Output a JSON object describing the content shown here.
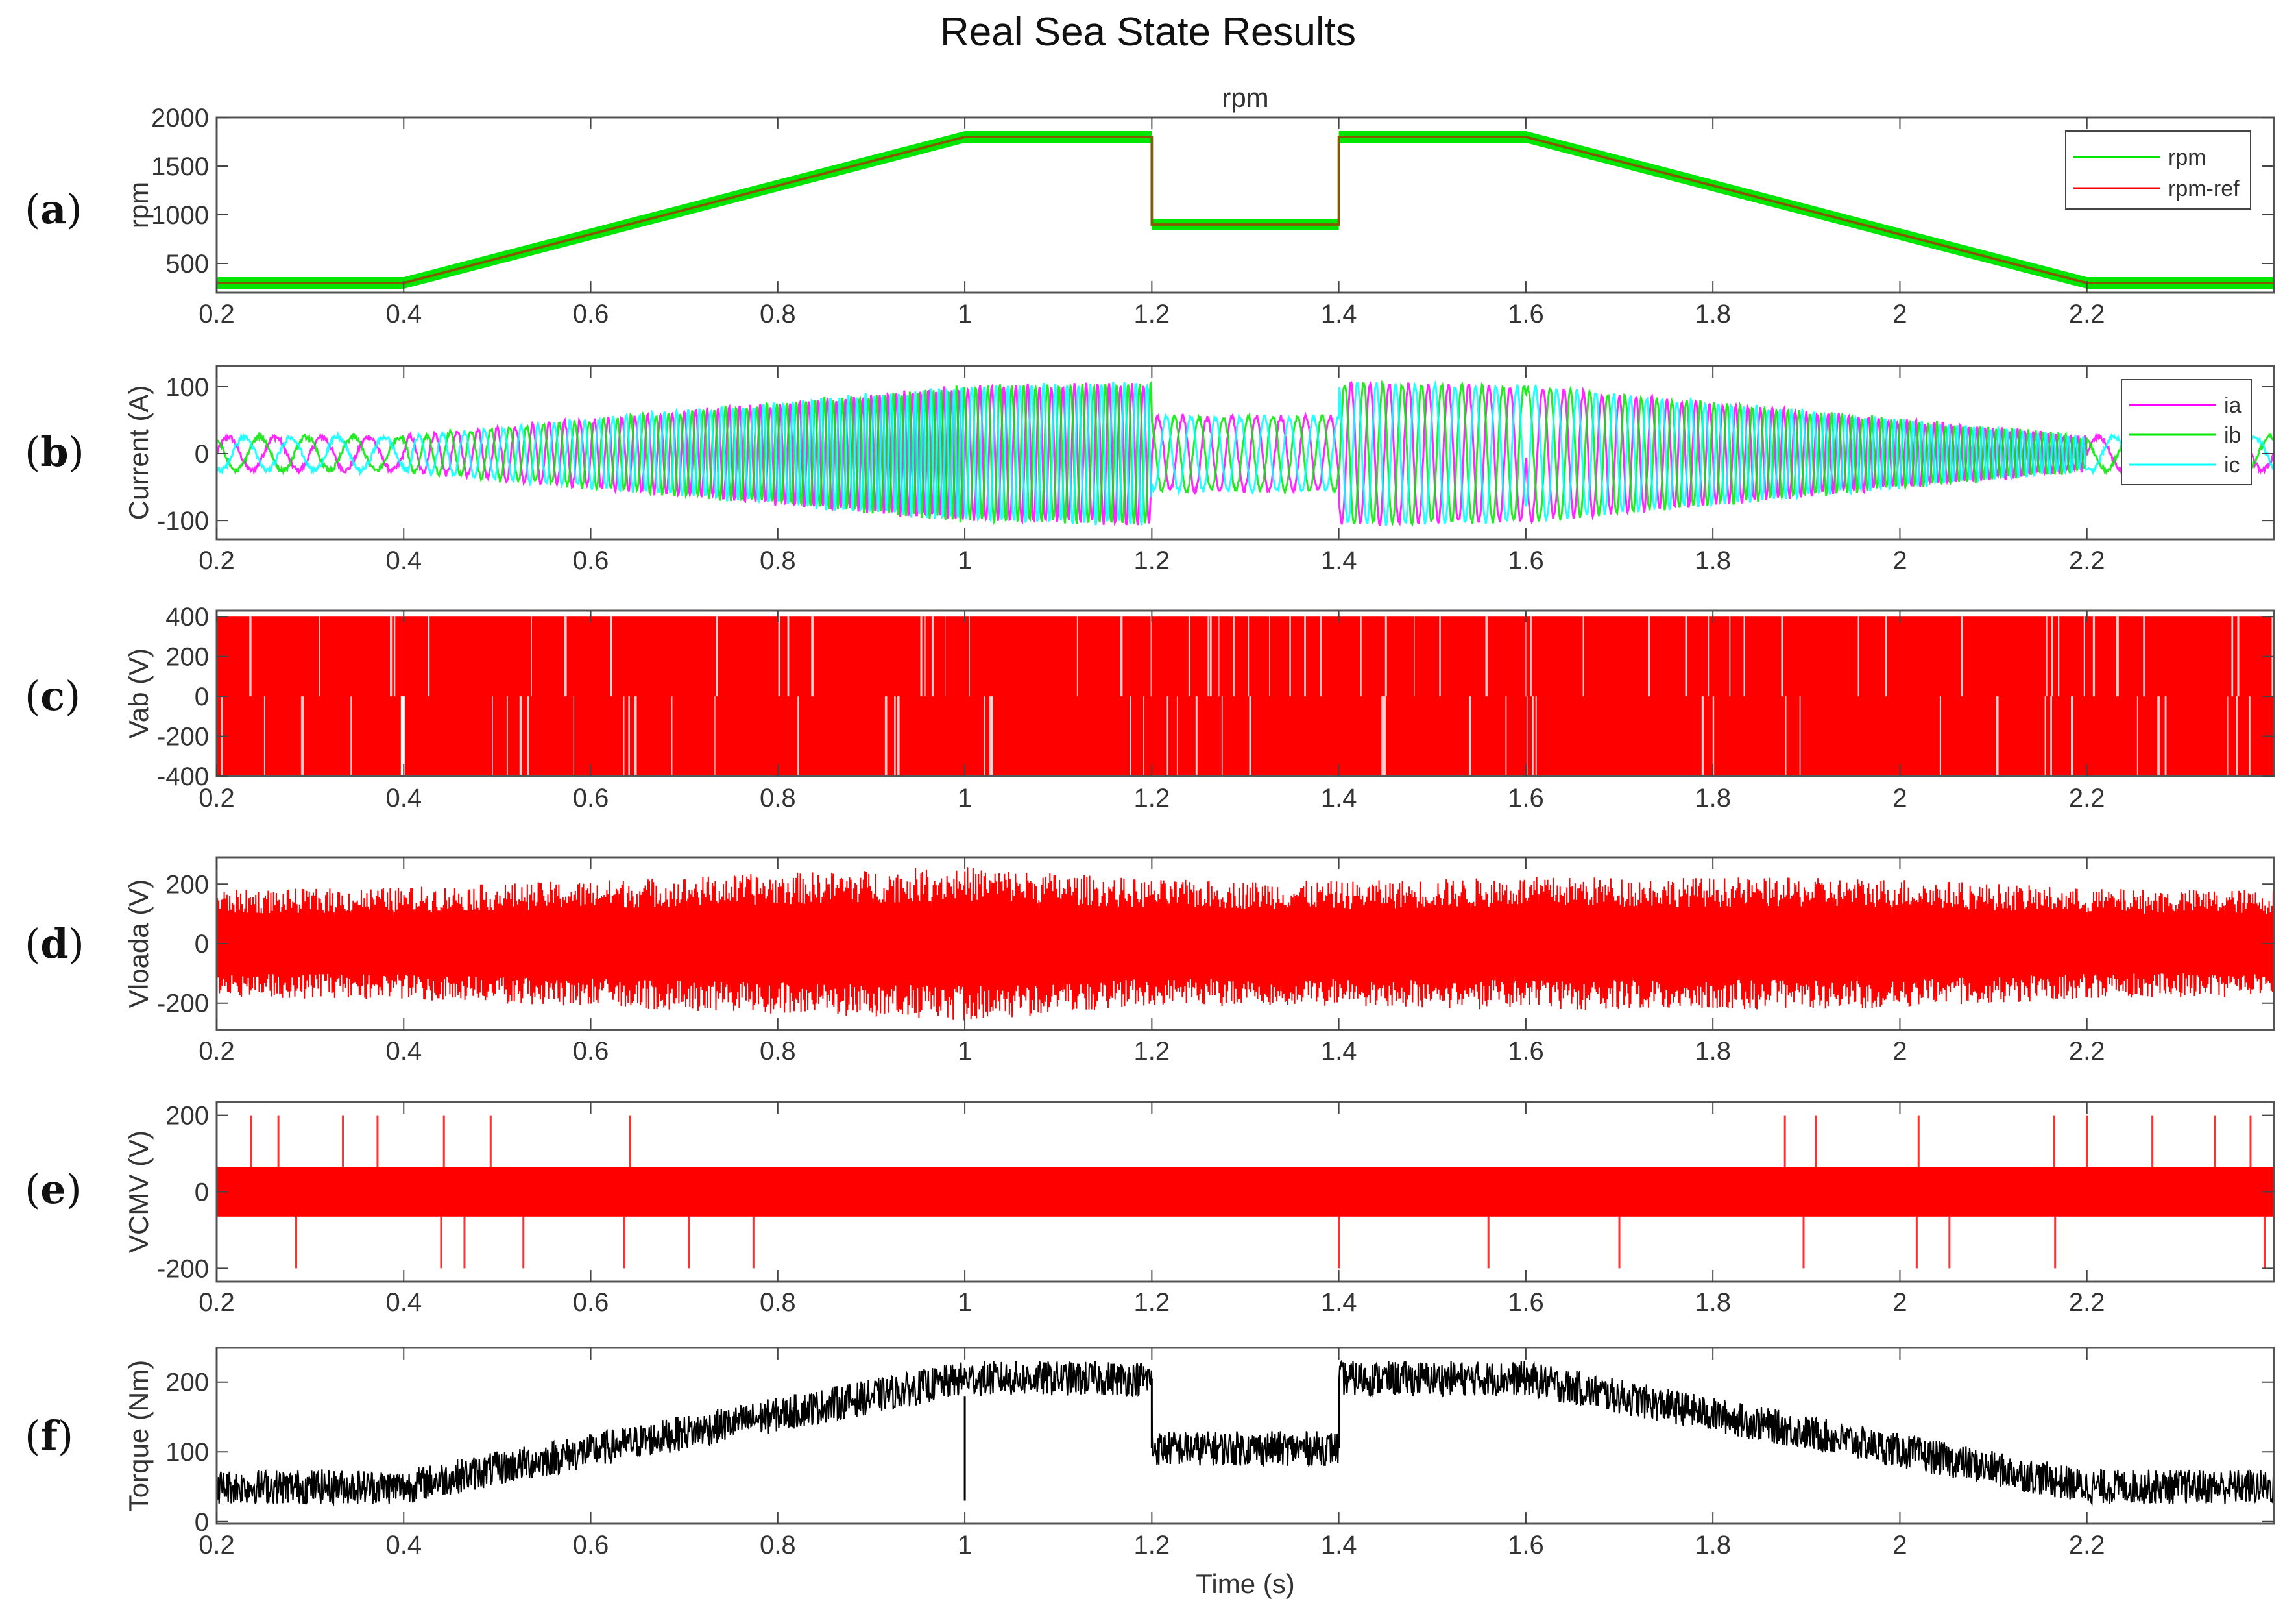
{
  "figure": {
    "title": "Real Sea State Results",
    "xlabel": "Time (s)",
    "x_ticks": [
      "0.2",
      "0.4",
      "0.6",
      "0.8",
      "1",
      "1.2",
      "1.4",
      "1.6",
      "1.8",
      "2",
      "2.2"
    ]
  },
  "panels": [
    {
      "id": "a",
      "label": "a",
      "ylabel": "rpm",
      "subtitle": "rpm",
      "y_ticks": [
        "500",
        "1000",
        "1500",
        "2000"
      ]
    },
    {
      "id": "b",
      "label": "b",
      "ylabel": "Current (A)",
      "y_ticks": [
        "-100",
        "0",
        "100"
      ]
    },
    {
      "id": "c",
      "label": "c",
      "ylabel": "Vab (V)",
      "y_ticks": [
        "-400",
        "-200",
        "0",
        "200",
        "400"
      ]
    },
    {
      "id": "d",
      "label": "d",
      "ylabel": "Vloada (V)",
      "y_ticks": [
        "-200",
        "0",
        "200"
      ]
    },
    {
      "id": "e",
      "label": "e",
      "ylabel": "VCMV (V)",
      "y_ticks": [
        "-200",
        "0",
        "200"
      ]
    },
    {
      "id": "f",
      "label": "f",
      "ylabel": "Torque (Nm)",
      "y_ticks": [
        "0",
        "100",
        "200"
      ]
    }
  ],
  "chart_data": [
    {
      "id": "a",
      "type": "line",
      "title": "rpm",
      "xlabel": "",
      "ylabel": "rpm",
      "xlim": [
        0.2,
        2.4
      ],
      "ylim": [
        200,
        2000
      ],
      "series": [
        {
          "name": "rpm",
          "color": "#00e600",
          "band": 60,
          "x": [
            0.2,
            0.4,
            1.0,
            1.2,
            1.2,
            1.4,
            1.4,
            1.6,
            2.2,
            2.4
          ],
          "y": [
            300,
            300,
            1800,
            1800,
            900,
            900,
            1800,
            1800,
            300,
            300
          ]
        },
        {
          "name": "rpm-ref",
          "color": "#ff0000",
          "x": [
            0.2,
            0.4,
            1.0,
            1.2,
            1.2,
            1.4,
            1.4,
            1.6,
            2.2,
            2.4
          ],
          "y": [
            300,
            300,
            1800,
            1800,
            900,
            900,
            1800,
            1800,
            300,
            300
          ]
        }
      ],
      "legend": [
        "rpm",
        "rpm-ref"
      ],
      "legend_position": "upper right",
      "grid": false
    },
    {
      "id": "b",
      "type": "line",
      "title": "",
      "xlabel": "",
      "ylabel": "Current (A)",
      "xlim": [
        0.2,
        2.4
      ],
      "ylim": [
        -128,
        131
      ],
      "series": [
        {
          "name": "ia",
          "color": "#ff00ff"
        },
        {
          "name": "ib",
          "color": "#00e600"
        },
        {
          "name": "ic",
          "color": "#00ffff"
        }
      ],
      "amplitude_envelope": {
        "x": [
          0.2,
          0.4,
          1.0,
          1.2,
          1.2,
          1.4,
          1.4,
          1.6,
          2.2,
          2.4
        ],
        "y": [
          25,
          25,
          100,
          105,
          55,
          55,
          105,
          100,
          25,
          25
        ]
      },
      "legend": [
        "ia",
        "ib",
        "ic"
      ],
      "legend_position": "upper right",
      "grid": false
    },
    {
      "id": "c",
      "type": "line",
      "title": "",
      "xlabel": "",
      "ylabel": "Vab (V)",
      "xlim": [
        0.2,
        2.4
      ],
      "ylim": [
        -400,
        430
      ],
      "series": [
        {
          "name": "Vab",
          "color": "#ff0000",
          "levels": [
            -400,
            0,
            400
          ]
        }
      ],
      "grid": false
    },
    {
      "id": "d",
      "type": "line",
      "title": "",
      "xlabel": "",
      "ylabel": "Vloada (V)",
      "xlim": [
        0.2,
        2.4
      ],
      "ylim": [
        -290,
        290
      ],
      "series": [
        {
          "name": "Vloada",
          "color": "#ff0000"
        }
      ],
      "amplitude_envelope": {
        "x": [
          0.2,
          0.4,
          0.7,
          1.0,
          1.2,
          1.4,
          1.6,
          2.0,
          2.2,
          2.4
        ],
        "y": [
          180,
          190,
          225,
          260,
          215,
          210,
          225,
          220,
          185,
          180
        ]
      },
      "grid": false
    },
    {
      "id": "e",
      "type": "line",
      "title": "",
      "xlabel": "",
      "ylabel": "VCMV (V)",
      "xlim": [
        0.2,
        2.4
      ],
      "ylim": [
        -235,
        235
      ],
      "series": [
        {
          "name": "VCMV",
          "color": "#ff0000",
          "band": [
            -65,
            65
          ]
        }
      ],
      "spikes_up": [
        0.2,
        0.237,
        0.266,
        0.335,
        0.372,
        0.443,
        0.493,
        0.642,
        1.877,
        1.91,
        2.02,
        2.165,
        2.2,
        2.27,
        2.337,
        2.375
      ],
      "spikes_down": [
        0.285,
        0.44,
        0.465,
        0.528,
        0.636,
        0.705,
        0.774,
        1.4,
        1.56,
        1.7,
        1.897,
        2.018,
        2.053,
        2.166,
        2.39
      ],
      "spike_amplitude": 200,
      "grid": false
    },
    {
      "id": "f",
      "type": "line",
      "title": "",
      "xlabel": "Time (s)",
      "ylabel": "Torque (Nm)",
      "xlim": [
        0.2,
        2.4
      ],
      "ylim": [
        -3,
        249
      ],
      "series": [
        {
          "name": "Torque",
          "color": "#000000",
          "x": [
            0.2,
            0.4,
            1.0,
            1.2,
            1.2,
            1.4,
            1.4,
            1.6,
            2.2,
            2.4
          ],
          "y": [
            50,
            50,
            205,
            205,
            105,
            105,
            205,
            205,
            50,
            50
          ],
          "ripple": 25
        }
      ],
      "annotations": [
        {
          "x": 1.0,
          "y": 30,
          "note": "transient dip at t=1.0"
        }
      ],
      "grid": false
    }
  ]
}
